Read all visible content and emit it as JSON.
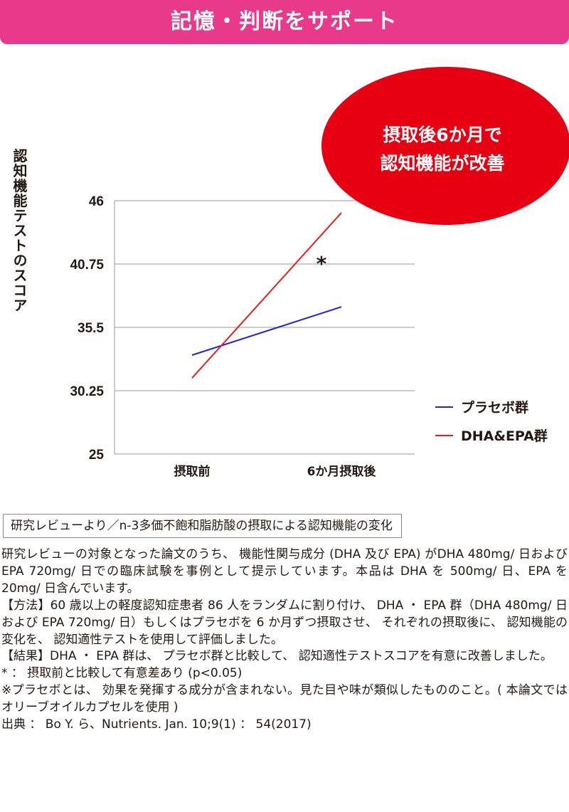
{
  "header": {
    "title": "記憶・判断をサポート"
  },
  "callout": {
    "line1": "摂取後6か月で",
    "line2": "認知機能が改善"
  },
  "chart_data": {
    "type": "line",
    "categories": [
      "摂取前",
      "6か月摂取後"
    ],
    "ylabel": "認知機能テストのスコア",
    "ylim": [
      25,
      46
    ],
    "yticks": [
      "46",
      "40.75",
      "35.5",
      "30.25",
      "25"
    ],
    "grid": true,
    "legend_position": "right",
    "series": [
      {
        "name": "プラセボ群",
        "color": "#1f22e6",
        "values": [
          33.2,
          37.2
        ]
      },
      {
        "name": "DHA&EPA群",
        "color": "#e52019",
        "values": [
          31.3,
          45.0
        ]
      }
    ],
    "annotation": "*"
  },
  "source_label": "研究レビューより／n-3多価不飽和脂肪酸の摂取による認知機能の変化",
  "paragraphs": [
    "研究レビューの対象となった論文のうち、 機能性関与成分 (DHA 及び EPA) がDHA 480mg/ 日および EPA 720mg/ 日での臨床試験を事例として提示しています。本品は DHA を 500mg/ 日、EPA を 20mg/ 日含んでいます。",
    "【方法】60 歳以上の軽度認知症患者 86 人をランダムに割り付け、 DHA ・ EPA 群（DHA 480mg/ 日および EPA 720mg/ 日）もしくはプラセボを 6 か月ずつ摂取させ、 それぞれの摂取後に、 認知機能の変化を、 認知適性テストを使用して評価しました。",
    "【結果】DHA ・ EPA 群は、 プラセボ群と比較して、 認知適性テストスコアを有意に改善しました。",
    "* ： 摂取前と比較して有意差あり (p<0.05)",
    "※プラセボとは、 効果を発揮する成分が含まれない。見た目や味が類似したもののこと。( 本論文ではオリーブオイルカプセルを使用 )",
    "出典 ： Bo Y. ら、Nutrients. Jan. 10;9(1) ： 54(2017)"
  ]
}
